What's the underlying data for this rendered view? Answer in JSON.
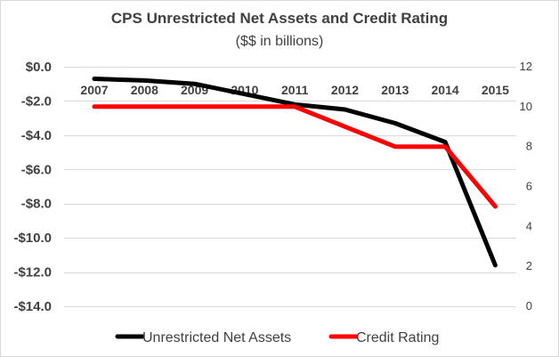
{
  "chart_data": {
    "type": "line",
    "title": "CPS Unrestricted Net Assets and Credit Rating",
    "subtitle": "($$ in billions)",
    "categories": [
      "2007",
      "2008",
      "2009",
      "2010",
      "2011",
      "2012",
      "2013",
      "2014",
      "2015"
    ],
    "series": [
      {
        "name": "Unrestricted Net Assets",
        "axis": "left",
        "color": "#000000",
        "values": [
          -0.7,
          -0.8,
          -1.0,
          -1.6,
          -2.2,
          -2.5,
          -3.3,
          -4.4,
          -11.6
        ]
      },
      {
        "name": "Credit Rating",
        "axis": "right",
        "color": "#ff0000",
        "values": [
          10,
          10,
          10,
          10,
          10,
          9,
          8,
          8,
          5
        ]
      }
    ],
    "y_axis": {
      "ylim": [
        -14,
        0
      ],
      "tick_values": [
        0,
        -2,
        -4,
        -6,
        -8,
        -10,
        -12,
        -14
      ],
      "tick_labels": [
        "$0.0",
        "-$2.0",
        "-$4.0",
        "-$6.0",
        "-$8.0",
        "-$10.0",
        "-$12.0",
        "-$14.0"
      ]
    },
    "y2_axis": {
      "ylim": [
        0,
        12
      ],
      "tick_values": [
        12,
        10,
        8,
        6,
        4,
        2,
        0
      ],
      "tick_labels": [
        "12",
        "10",
        "8",
        "6",
        "4",
        "2",
        "0"
      ]
    },
    "grid": true,
    "legend_position": "bottom"
  }
}
